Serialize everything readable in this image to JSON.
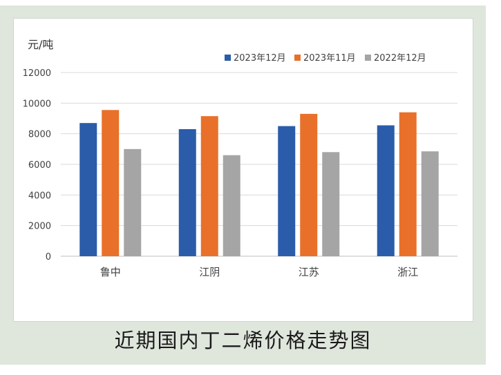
{
  "caption": "近期国内丁二烯价格走势图",
  "chart_data": {
    "type": "bar",
    "ylabel": "元/吨",
    "ylim": [
      0,
      12000
    ],
    "yticks": [
      0,
      2000,
      4000,
      6000,
      8000,
      10000,
      12000
    ],
    "grid": true,
    "legend_position": "top-right",
    "categories": [
      "鲁中",
      "江阴",
      "江苏",
      "浙江"
    ],
    "series": [
      {
        "name": "2023年12月",
        "color": "#2a5caa",
        "values": [
          8700,
          8300,
          8500,
          8550
        ]
      },
      {
        "name": "2023年11月",
        "color": "#e8702a",
        "values": [
          9550,
          9150,
          9300,
          9400
        ]
      },
      {
        "name": "2022年12月",
        "color": "#a5a5a5",
        "values": [
          7000,
          6600,
          6800,
          6850
        ]
      }
    ]
  }
}
